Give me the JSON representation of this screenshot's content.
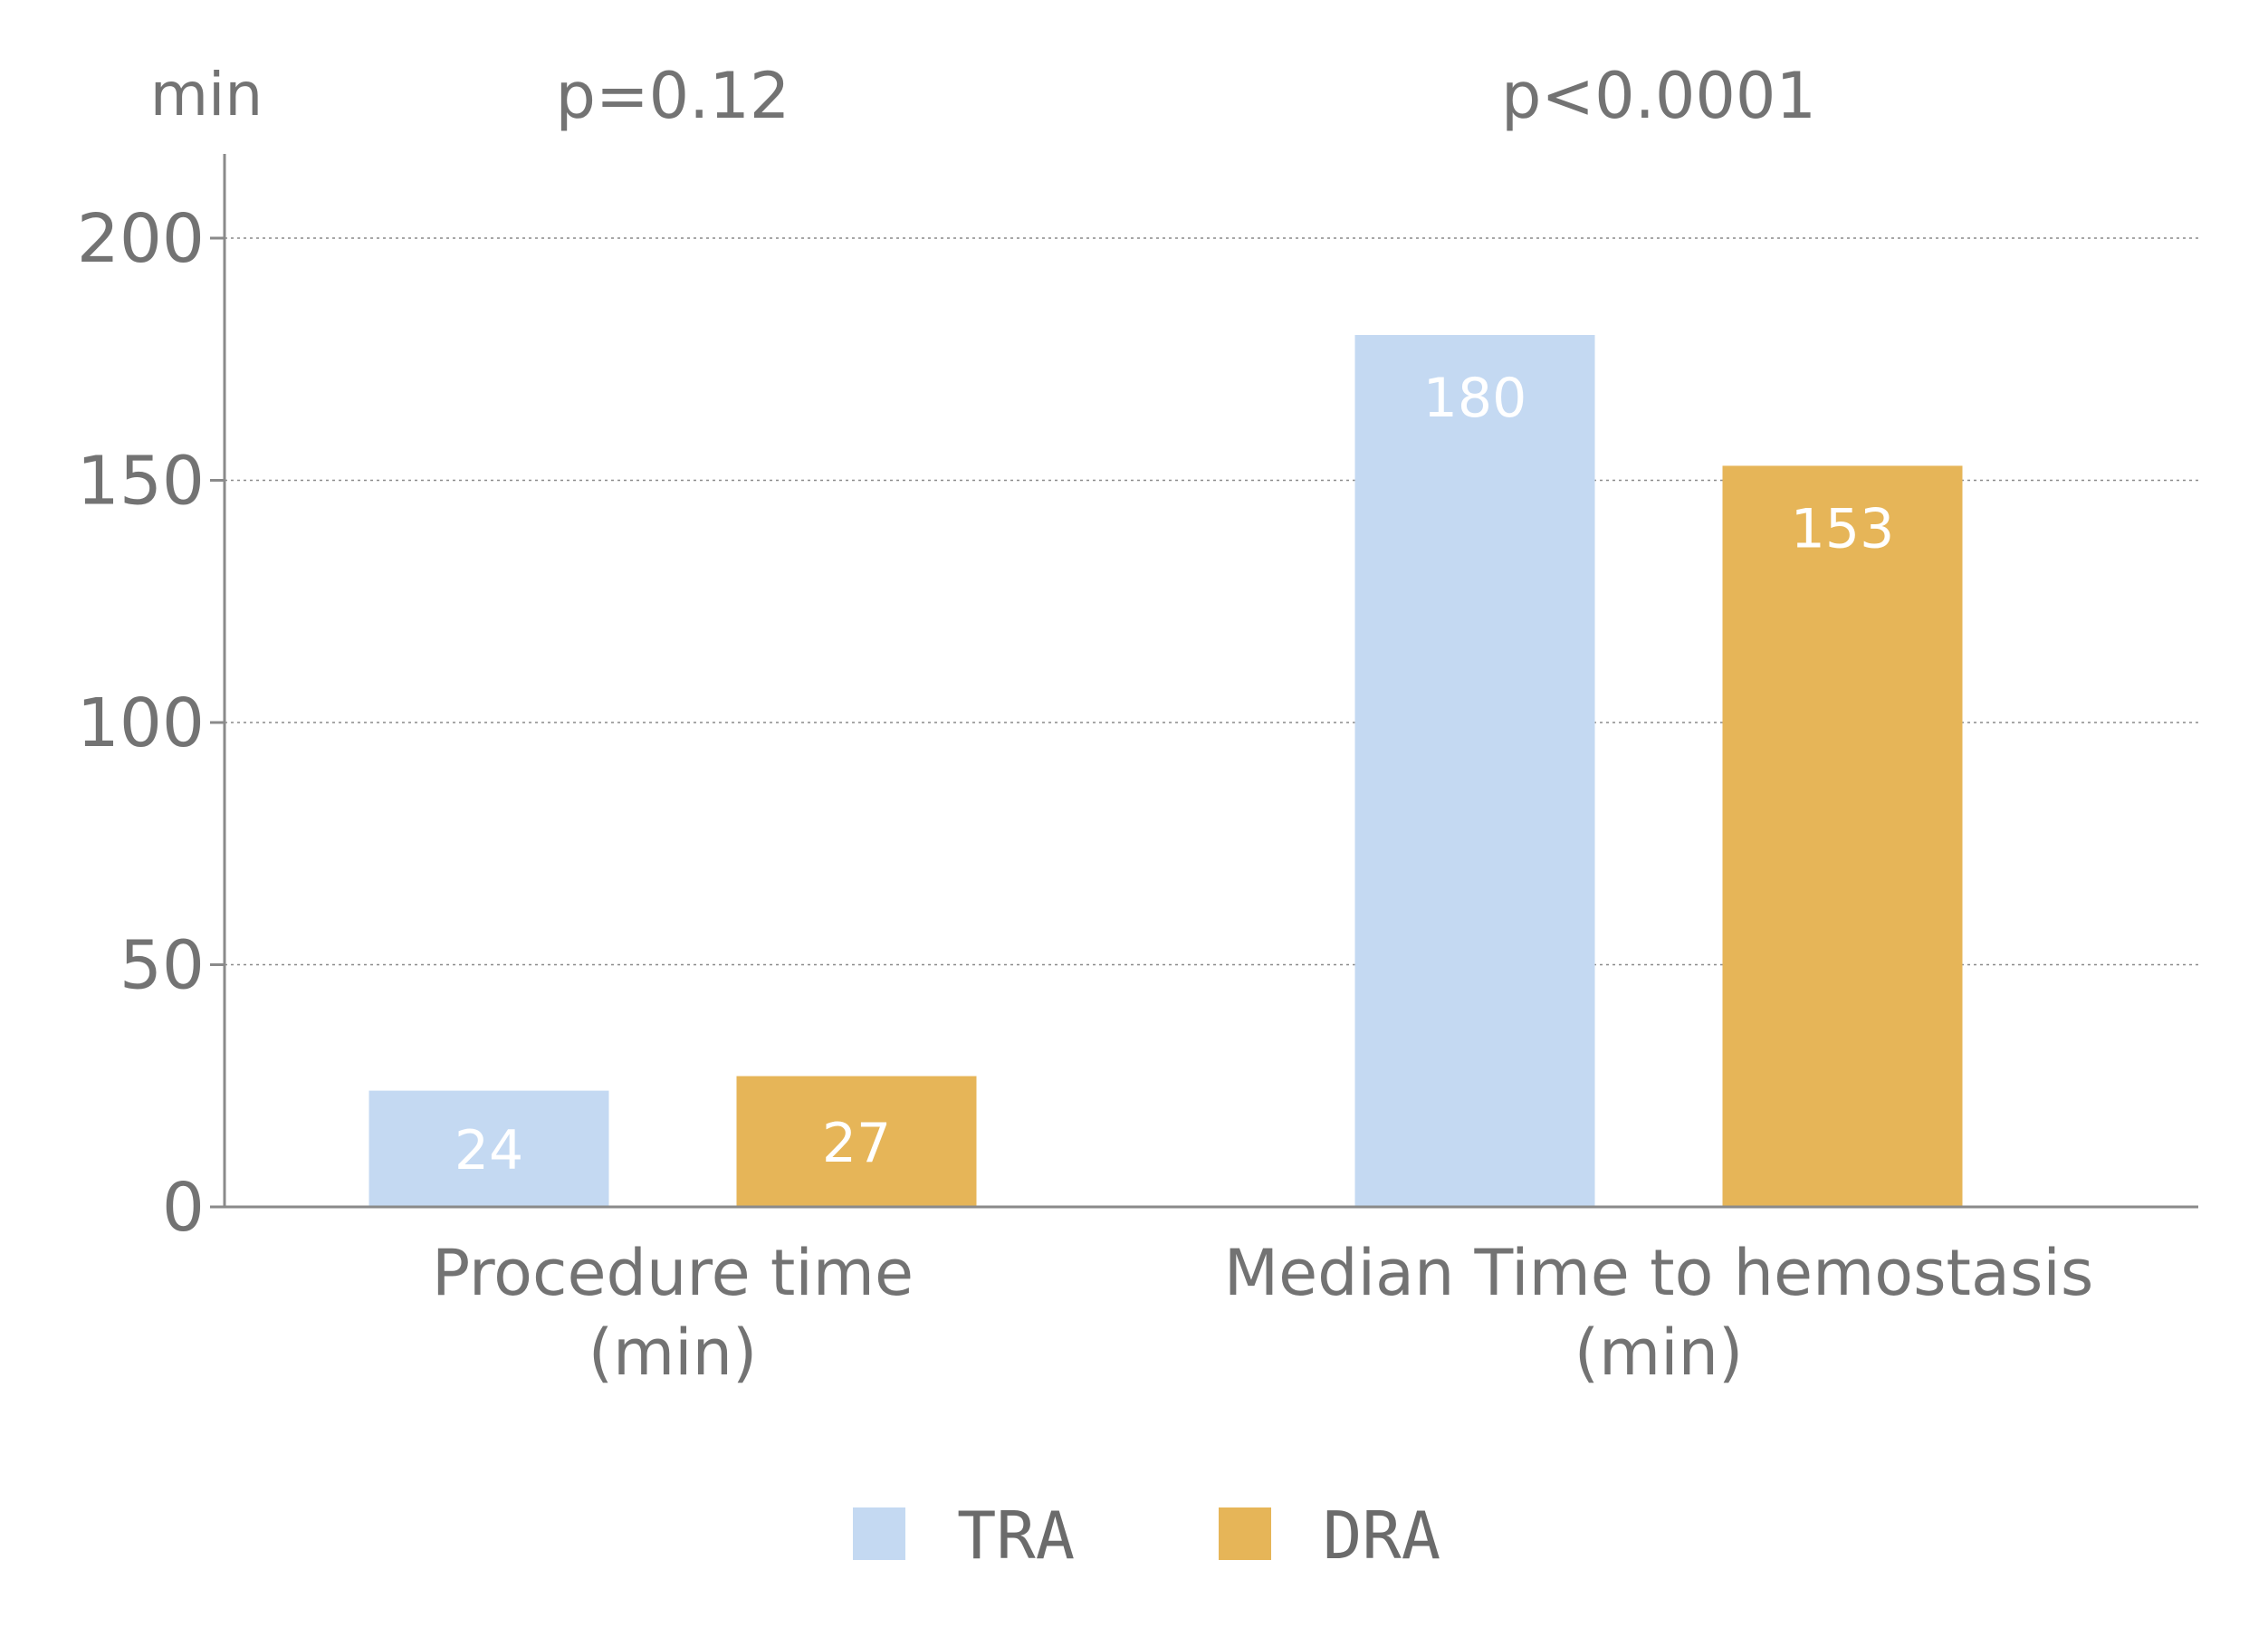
{
  "chart_data": {
    "type": "bar",
    "y_unit_label": "min",
    "ylim": [
      0,
      218
    ],
    "yticks": [
      0,
      50,
      100,
      150,
      200
    ],
    "grid": true,
    "legend_position": "bottom-center",
    "groups": [
      {
        "label_lines": [
          "Procedure time",
          "(min)"
        ],
        "p_value": "p=0.12",
        "values": [
          24,
          27
        ]
      },
      {
        "label_lines": [
          "Median Time to hemostasis",
          "(min)"
        ],
        "p_value": "p<0.0001",
        "values": [
          180,
          153
        ]
      }
    ],
    "series": [
      {
        "name": "TRA",
        "color": "#c4d9f2"
      },
      {
        "name": "DRA",
        "color": "#e6b558"
      }
    ],
    "data_labels": [
      [
        "24",
        "27"
      ],
      [
        "180",
        "153"
      ]
    ]
  }
}
